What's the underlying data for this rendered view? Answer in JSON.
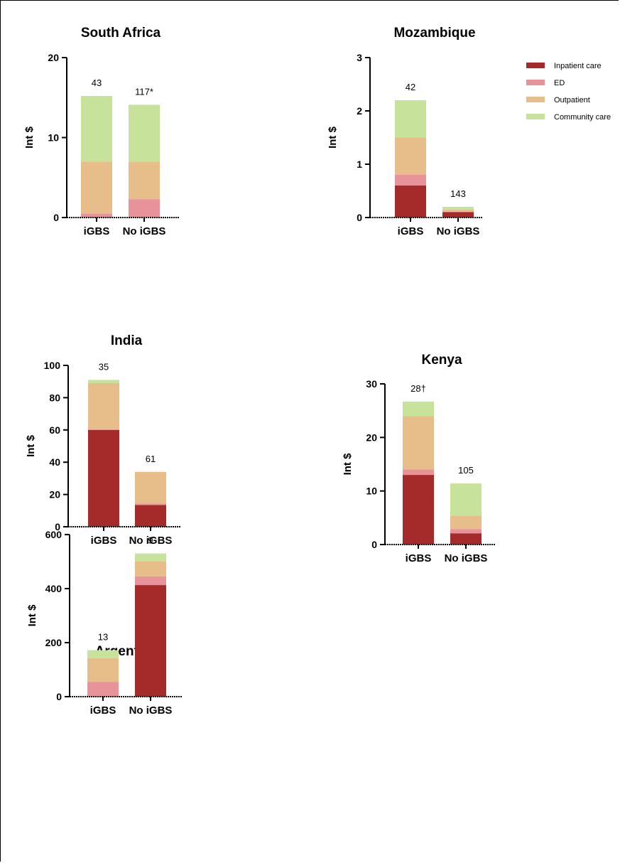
{
  "colors": {
    "inpatient": "#a52a2a",
    "ed": "#e8939a",
    "outpatient": "#e7bd8a",
    "community": "#c6e29b"
  },
  "legend": {
    "items": [
      {
        "key": "inpatient",
        "label": "Inpatient care"
      },
      {
        "key": "ed",
        "label": "ED"
      },
      {
        "key": "outpatient",
        "label": "Outpatient"
      },
      {
        "key": "community",
        "label": "Community care"
      }
    ],
    "position": "top-right"
  },
  "chart_data": [
    {
      "type": "bar",
      "stacked": true,
      "title": "South Africa",
      "ylabel": "Int $",
      "ylim": [
        0,
        20
      ],
      "yticks": [
        "0",
        "10",
        "20"
      ],
      "categories": [
        "iGBS",
        "No iGBS"
      ],
      "annotations": [
        "43",
        "117*"
      ],
      "series": [
        {
          "name": "Inpatient care",
          "key": "inpatient",
          "values": [
            0,
            0
          ]
        },
        {
          "name": "ED",
          "key": "ed",
          "values": [
            0.5,
            2.3
          ]
        },
        {
          "name": "Outpatient",
          "key": "outpatient",
          "values": [
            6.5,
            4.7
          ]
        },
        {
          "name": "Community care",
          "key": "community",
          "values": [
            8.2,
            7.1
          ]
        }
      ]
    },
    {
      "type": "bar",
      "stacked": true,
      "title": "Mozambique",
      "ylabel": "Int $",
      "ylim": [
        0,
        3
      ],
      "yticks": [
        "0",
        "1",
        "2",
        "3"
      ],
      "categories": [
        "iGBS",
        "No iGBS"
      ],
      "annotations": [
        "42",
        "143"
      ],
      "series": [
        {
          "name": "Inpatient care",
          "key": "inpatient",
          "values": [
            0.6,
            0.1
          ]
        },
        {
          "name": "ED",
          "key": "ed",
          "values": [
            0.2,
            0.01
          ]
        },
        {
          "name": "Outpatient",
          "key": "outpatient",
          "values": [
            0.7,
            0.04
          ]
        },
        {
          "name": "Community care",
          "key": "community",
          "values": [
            0.7,
            0.05
          ]
        }
      ]
    },
    {
      "type": "bar",
      "stacked": true,
      "title": "India",
      "ylabel": "Int $",
      "ylim": [
        0,
        100
      ],
      "yticks": [
        "0",
        "20",
        "40",
        "60",
        "80",
        "100"
      ],
      "categories": [
        "iGBS",
        "No iGBS"
      ],
      "annotations": [
        "35",
        "61"
      ],
      "series": [
        {
          "name": "Inpatient care",
          "key": "inpatient",
          "values": [
            60,
            13.5
          ]
        },
        {
          "name": "ED",
          "key": "ed",
          "values": [
            0.5,
            0.8
          ]
        },
        {
          "name": "Outpatient",
          "key": "outpatient",
          "values": [
            28.5,
            19.7
          ]
        },
        {
          "name": "Community care",
          "key": "community",
          "values": [
            2,
            0
          ]
        }
      ]
    },
    {
      "type": "bar",
      "stacked": true,
      "title": "Kenya",
      "ylabel": "Int $",
      "ylim": [
        0,
        30
      ],
      "yticks": [
        "0",
        "10",
        "20",
        "30"
      ],
      "categories": [
        "iGBS",
        "No iGBS"
      ],
      "annotations": [
        "28†",
        "105"
      ],
      "series": [
        {
          "name": "Inpatient care",
          "key": "inpatient",
          "values": [
            13,
            2.1
          ]
        },
        {
          "name": "ED",
          "key": "ed",
          "values": [
            1,
            0.8
          ]
        },
        {
          "name": "Outpatient",
          "key": "outpatient",
          "values": [
            10,
            2.5
          ]
        },
        {
          "name": "Community care",
          "key": "community",
          "values": [
            2.7,
            6
          ]
        }
      ]
    },
    {
      "type": "bar",
      "stacked": true,
      "title": "Argentina",
      "ylabel": "Int $",
      "ylim": [
        0,
        600
      ],
      "yticks": [
        "0",
        "200",
        "400",
        "600"
      ],
      "categories": [
        "iGBS",
        "No iGBS"
      ],
      "annotations": [
        "13",
        "9"
      ],
      "series": [
        {
          "name": "Inpatient care",
          "key": "inpatient",
          "values": [
            0,
            413
          ]
        },
        {
          "name": "ED",
          "key": "ed",
          "values": [
            55,
            32
          ]
        },
        {
          "name": "Outpatient",
          "key": "outpatient",
          "values": [
            87,
            55
          ]
        },
        {
          "name": "Community care",
          "key": "community",
          "values": [
            30,
            30
          ]
        }
      ]
    }
  ]
}
